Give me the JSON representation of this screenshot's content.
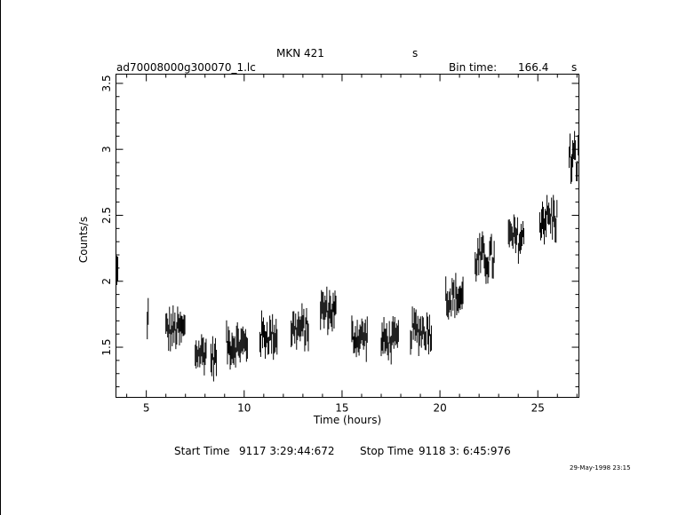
{
  "header": {
    "object": "MKN 421",
    "object_unit": "s",
    "file": "ad70008000g300070_1.lc",
    "bin_label": "Bin time:",
    "bin_value": "166.4",
    "bin_unit": "s"
  },
  "footer": {
    "start_label": "Start Time",
    "start_value": "9117  3:29:44:672",
    "stop_label": "Stop Time",
    "stop_value": "9118  3: 6:45:976",
    "date_stamp": "29-May-1998 23:15"
  },
  "chart_data": {
    "type": "scatter",
    "xlabel": "Time (hours)",
    "ylabel": "Counts/s",
    "xlim": [
      3.45,
      27.1
    ],
    "ylim": [
      1.12,
      3.57
    ],
    "xticks": [
      "5",
      "10",
      "15",
      "20",
      "25"
    ],
    "yticks": [
      "1.5",
      "2",
      "2.5",
      "3",
      "3.5"
    ],
    "segments": [
      {
        "x0": 3.45,
        "x1": 3.55,
        "level": 2.05,
        "amp": 0.12
      },
      {
        "x0": 5.05,
        "x1": 5.1,
        "level": 1.73,
        "amp": 0.1
      },
      {
        "x0": 6.0,
        "x1": 7.0,
        "level": 1.63,
        "amp": 0.1
      },
      {
        "x0": 7.5,
        "x1": 8.1,
        "level": 1.46,
        "amp": 0.09
      },
      {
        "x0": 8.3,
        "x1": 8.6,
        "level": 1.42,
        "amp": 0.09
      },
      {
        "x0": 9.1,
        "x1": 10.2,
        "level": 1.52,
        "amp": 0.1
      },
      {
        "x0": 10.8,
        "x1": 11.7,
        "level": 1.59,
        "amp": 0.1
      },
      {
        "x0": 12.4,
        "x1": 13.3,
        "level": 1.64,
        "amp": 0.1
      },
      {
        "x0": 13.9,
        "x1": 14.7,
        "level": 1.78,
        "amp": 0.1
      },
      {
        "x0": 15.5,
        "x1": 16.3,
        "level": 1.58,
        "amp": 0.09
      },
      {
        "x0": 17.0,
        "x1": 17.9,
        "level": 1.55,
        "amp": 0.09
      },
      {
        "x0": 18.5,
        "x1": 19.6,
        "level": 1.63,
        "amp": 0.1
      },
      {
        "x0": 20.3,
        "x1": 21.2,
        "level": 1.88,
        "amp": 0.1
      },
      {
        "x0": 21.8,
        "x1": 22.8,
        "level": 2.17,
        "amp": 0.12
      },
      {
        "x0": 23.5,
        "x1": 24.3,
        "level": 2.32,
        "amp": 0.11
      },
      {
        "x0": 25.1,
        "x1": 26.0,
        "level": 2.48,
        "amp": 0.12
      },
      {
        "x0": 26.6,
        "x1": 27.1,
        "level": 2.92,
        "amp": 0.14
      }
    ]
  }
}
